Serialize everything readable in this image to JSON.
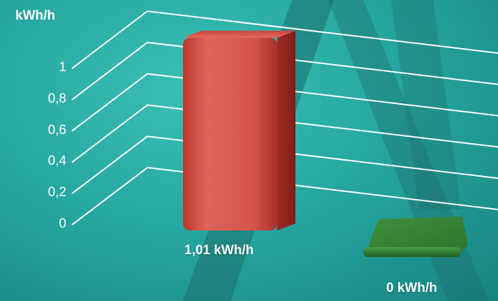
{
  "chart_data": {
    "type": "bar",
    "title": "",
    "unit_label": "kWh/h",
    "categories": [
      "",
      ""
    ],
    "series": [
      {
        "values": [
          1.01,
          0
        ],
        "colors": [
          "#d9554c",
          "#3c8c3a"
        ]
      }
    ],
    "value_labels": [
      "1,01 kWh/h",
      "0 kWh/h"
    ],
    "y_ticks": [
      "0",
      "0,2",
      "0,4",
      "0,6",
      "0,8",
      "1"
    ],
    "ylim": [
      0,
      1
    ],
    "grid": true,
    "legend": "none",
    "style": "3d-perspective"
  }
}
